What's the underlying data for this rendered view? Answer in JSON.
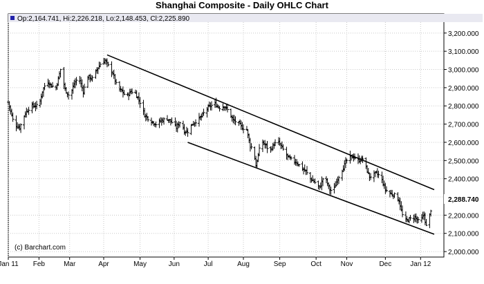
{
  "chart_data": {
    "type": "ohlc",
    "title": "Shanghai Composite - Daily OHLC Chart",
    "legend_text": "Op:2,164.741, Hi:2,226.218, Lo:2,148.453, Cl:2,225.890",
    "watermark": "(c) Barchart.com",
    "ylim": [
      1970,
      3260
    ],
    "y_ticks": [
      {
        "value": 2000,
        "label": "2,000.000"
      },
      {
        "value": 2100,
        "label": "2,100.000"
      },
      {
        "value": 2200,
        "label": "2,200.000"
      },
      {
        "value": 2300,
        "label": "2,300.000"
      },
      {
        "value": 2400,
        "label": "2,400.000"
      },
      {
        "value": 2500,
        "label": "2,500.000"
      },
      {
        "value": 2600,
        "label": "2,600.000"
      },
      {
        "value": 2700,
        "label": "2,700.000"
      },
      {
        "value": 2800,
        "label": "2,800.000"
      },
      {
        "value": 2900,
        "label": "2,900.000"
      },
      {
        "value": 3000,
        "label": "3,000.000"
      },
      {
        "value": 3100,
        "label": "3,100.000"
      },
      {
        "value": 3200,
        "label": "3,200.000"
      }
    ],
    "last_price": {
      "value": 2288.74,
      "label": "2,288.740"
    },
    "x_labels": [
      "Jan 11",
      "Feb",
      "Mar",
      "Apr",
      "May",
      "Jun",
      "Jul",
      "Aug",
      "Sep",
      "Oct",
      "Nov",
      "Dec",
      "Jan 12"
    ],
    "x_label_days": [
      0,
      27,
      54,
      84,
      116,
      146,
      176,
      207,
      239,
      271,
      298,
      332,
      363
    ],
    "day_range": [
      0,
      375
    ],
    "anchors": [
      [
        0,
        2820
      ],
      [
        5,
        2700
      ],
      [
        10,
        2680
      ],
      [
        15,
        2760
      ],
      [
        20,
        2800
      ],
      [
        27,
        2800
      ],
      [
        30,
        2880
      ],
      [
        34,
        2940
      ],
      [
        38,
        2910
      ],
      [
        42,
        2900
      ],
      [
        46,
        3000
      ],
      [
        50,
        2890
      ],
      [
        54,
        2850
      ],
      [
        58,
        2920
      ],
      [
        62,
        2960
      ],
      [
        66,
        2880
      ],
      [
        70,
        2960
      ],
      [
        74,
        2950
      ],
      [
        78,
        3000
      ],
      [
        82,
        3040
      ],
      [
        85,
        3050
      ],
      [
        88,
        3020
      ],
      [
        92,
        2980
      ],
      [
        96,
        2900
      ],
      [
        100,
        2880
      ],
      [
        104,
        2850
      ],
      [
        108,
        2880
      ],
      [
        112,
        2870
      ],
      [
        116,
        2820
      ],
      [
        120,
        2750
      ],
      [
        125,
        2720
      ],
      [
        130,
        2700
      ],
      [
        135,
        2720
      ],
      [
        140,
        2730
      ],
      [
        144,
        2710
      ],
      [
        148,
        2680
      ],
      [
        152,
        2720
      ],
      [
        155,
        2660
      ],
      [
        158,
        2660
      ],
      [
        162,
        2700
      ],
      [
        166,
        2720
      ],
      [
        170,
        2740
      ],
      [
        174,
        2780
      ],
      [
        178,
        2800
      ],
      [
        182,
        2810
      ],
      [
        186,
        2790
      ],
      [
        190,
        2800
      ],
      [
        194,
        2770
      ],
      [
        198,
        2720
      ],
      [
        202,
        2710
      ],
      [
        206,
        2680
      ],
      [
        210,
        2670
      ],
      [
        213,
        2580
      ],
      [
        216,
        2560
      ],
      [
        218,
        2470
      ],
      [
        221,
        2560
      ],
      [
        224,
        2600
      ],
      [
        227,
        2580
      ],
      [
        230,
        2550
      ],
      [
        234,
        2590
      ],
      [
        238,
        2600
      ],
      [
        242,
        2560
      ],
      [
        246,
        2520
      ],
      [
        250,
        2500
      ],
      [
        254,
        2490
      ],
      [
        258,
        2460
      ],
      [
        262,
        2440
      ],
      [
        266,
        2400
      ],
      [
        270,
        2380
      ],
      [
        274,
        2350
      ],
      [
        277,
        2400
      ],
      [
        280,
        2390
      ],
      [
        283,
        2340
      ],
      [
        286,
        2330
      ],
      [
        290,
        2400
      ],
      [
        294,
        2450
      ],
      [
        297,
        2490
      ],
      [
        300,
        2520
      ],
      [
        304,
        2520
      ],
      [
        308,
        2500
      ],
      [
        312,
        2510
      ],
      [
        315,
        2460
      ],
      [
        318,
        2410
      ],
      [
        321,
        2420
      ],
      [
        324,
        2430
      ],
      [
        328,
        2410
      ],
      [
        332,
        2340
      ],
      [
        336,
        2320
      ],
      [
        340,
        2310
      ],
      [
        344,
        2280
      ],
      [
        347,
        2200
      ],
      [
        350,
        2170
      ],
      [
        354,
        2180
      ],
      [
        358,
        2190
      ],
      [
        362,
        2160
      ],
      [
        366,
        2200
      ],
      [
        368,
        2140
      ],
      [
        370,
        2170
      ],
      [
        372,
        2230
      ]
    ],
    "trendlines": [
      {
        "name": "upper-channel",
        "points": [
          [
            87,
            3080
          ],
          [
            375,
            2340
          ]
        ]
      },
      {
        "name": "lower-channel",
        "points": [
          [
            158,
            2600
          ],
          [
            375,
            2095
          ]
        ]
      }
    ],
    "colors": {
      "bar": "#000000",
      "grid": "#c8c8c8",
      "legend_bg": "#e9e9f1",
      "plot_border": "#000000"
    }
  }
}
